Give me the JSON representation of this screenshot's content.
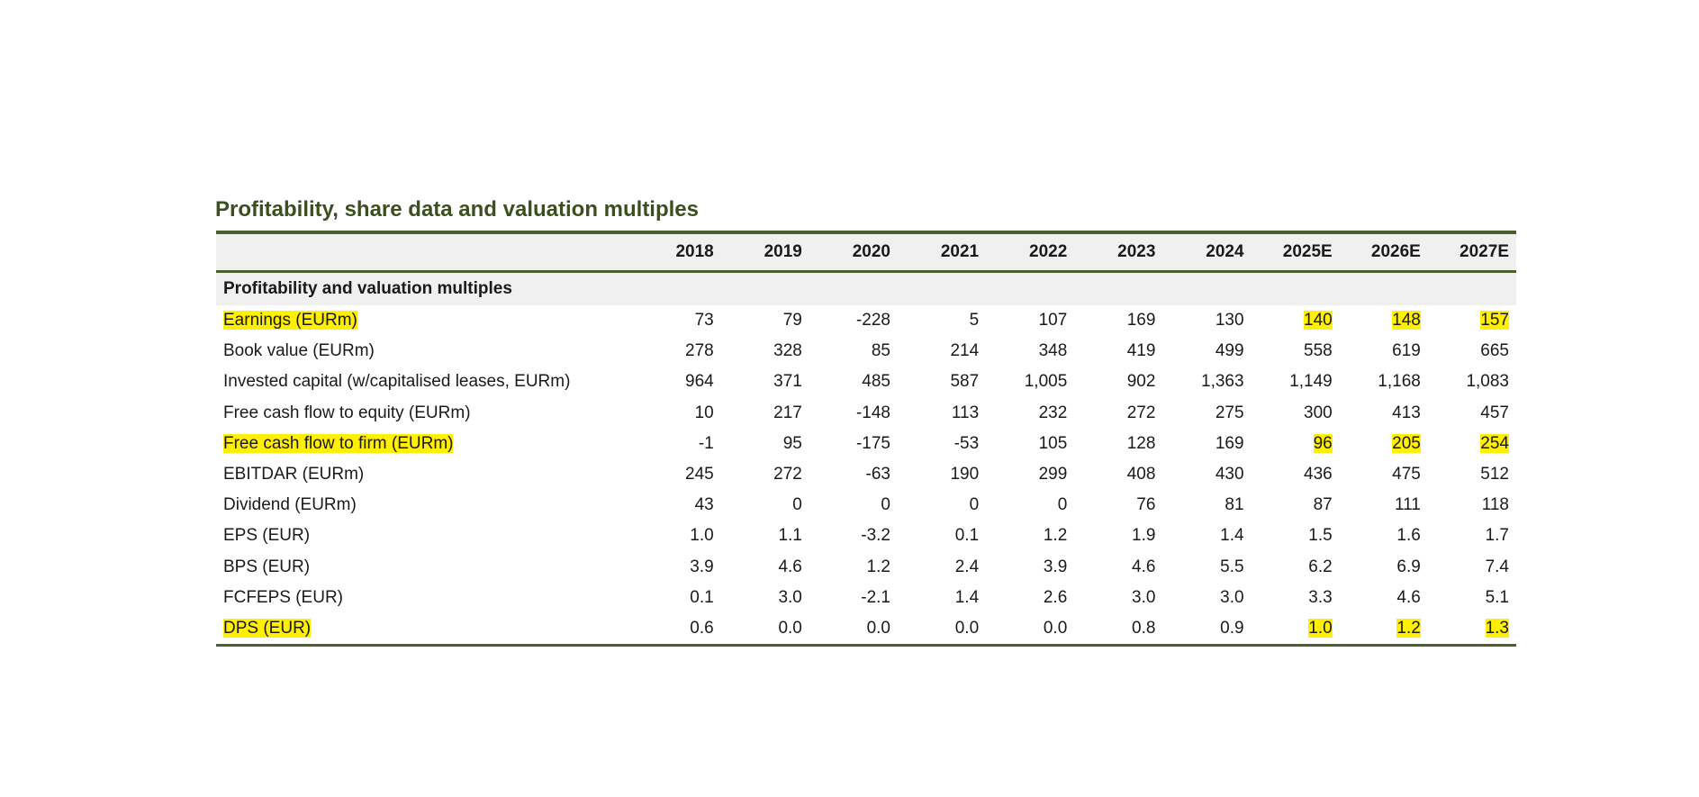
{
  "title": "Profitability, share data and valuation multiples",
  "columns": [
    "2018",
    "2019",
    "2020",
    "2021",
    "2022",
    "2023",
    "2024",
    "2025E",
    "2026E",
    "2027E"
  ],
  "section": "Profitability and valuation multiples",
  "highlight_color": "#ffef00",
  "rows": [
    {
      "label": "Earnings (EURm)",
      "highlight": true,
      "values": [
        "73",
        "79",
        "-228",
        "5",
        "107",
        "169",
        "130",
        "140",
        "148",
        "157"
      ]
    },
    {
      "label": "Book value (EURm)",
      "highlight": false,
      "values": [
        "278",
        "328",
        "85",
        "214",
        "348",
        "419",
        "499",
        "558",
        "619",
        "665"
      ]
    },
    {
      "label": "Invested capital (w/capitalised leases, EURm)",
      "highlight": false,
      "values": [
        "964",
        "371",
        "485",
        "587",
        "1,005",
        "902",
        "1,363",
        "1,149",
        "1,168",
        "1,083"
      ]
    },
    {
      "label": "Free cash flow to equity (EURm)",
      "highlight": false,
      "values": [
        "10",
        "217",
        "-148",
        "113",
        "232",
        "272",
        "275",
        "300",
        "413",
        "457"
      ]
    },
    {
      "label": "Free cash flow to firm (EURm)",
      "highlight": true,
      "values": [
        "-1",
        "95",
        "-175",
        "-53",
        "105",
        "128",
        "169",
        "96",
        "205",
        "254"
      ]
    },
    {
      "label": "EBITDAR (EURm)",
      "highlight": false,
      "values": [
        "245",
        "272",
        "-63",
        "190",
        "299",
        "408",
        "430",
        "436",
        "475",
        "512"
      ]
    },
    {
      "label": "Dividend (EURm)",
      "highlight": false,
      "values": [
        "43",
        "0",
        "0",
        "0",
        "0",
        "76",
        "81",
        "87",
        "111",
        "118"
      ]
    },
    {
      "label": "EPS (EUR)",
      "highlight": false,
      "values": [
        "1.0",
        "1.1",
        "-3.2",
        "0.1",
        "1.2",
        "1.9",
        "1.4",
        "1.5",
        "1.6",
        "1.7"
      ]
    },
    {
      "label": "BPS (EUR)",
      "highlight": false,
      "values": [
        "3.9",
        "4.6",
        "1.2",
        "2.4",
        "3.9",
        "4.6",
        "5.5",
        "6.2",
        "6.9",
        "7.4"
      ]
    },
    {
      "label": "FCFEPS (EUR)",
      "highlight": false,
      "values": [
        "0.1",
        "3.0",
        "-2.1",
        "1.4",
        "2.6",
        "3.0",
        "3.0",
        "3.3",
        "4.6",
        "5.1"
      ]
    },
    {
      "label": "DPS (EUR)",
      "highlight": true,
      "values": [
        "0.6",
        "0.0",
        "0.0",
        "0.0",
        "0.0",
        "0.8",
        "0.9",
        "1.0",
        "1.2",
        "1.3"
      ]
    }
  ]
}
